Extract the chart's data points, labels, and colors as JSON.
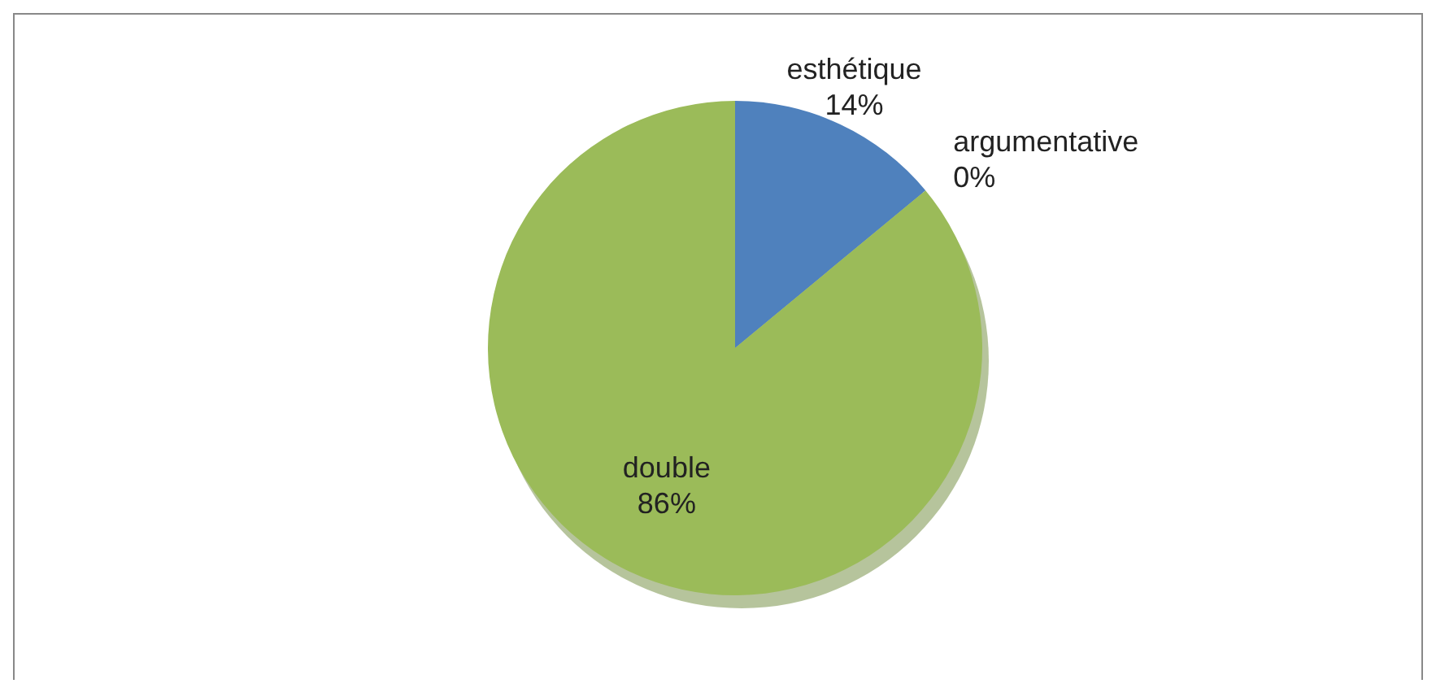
{
  "chart_data": {
    "type": "pie",
    "categories": [
      "esthétique",
      "argumentative",
      "double"
    ],
    "values": [
      14,
      0,
      86
    ],
    "colors": [
      "#4f81bd",
      "#c0504d",
      "#9bbb59"
    ],
    "value_labels": [
      "14%",
      "0%",
      "86%"
    ]
  }
}
